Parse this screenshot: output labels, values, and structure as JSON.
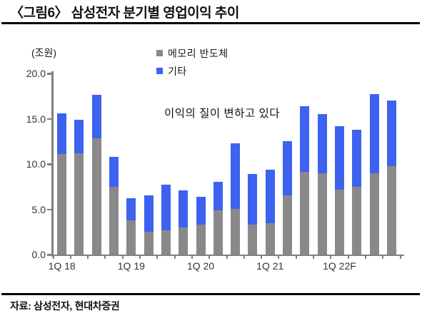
{
  "figure": {
    "title": "〈그림6〉 삼성전자 분기별 영업이익 추이",
    "source": "자료: 삼성전자, 현대차증권"
  },
  "chart_data": {
    "type": "bar",
    "stacked": true,
    "title": "삼성전자 분기별 영업이익 추이",
    "unit_label": "(조원)",
    "annotation": "이익의 질이 변하고 있다",
    "grid": false,
    "legend_position": "top-center",
    "ylim": [
      0,
      20
    ],
    "y_ticks": [
      "0.0",
      "5.0",
      "10.0",
      "15.0",
      "20.0"
    ],
    "categories": [
      "1Q18",
      "2Q18",
      "3Q18",
      "4Q18",
      "1Q19",
      "2Q19",
      "3Q19",
      "4Q19",
      "1Q20",
      "2Q20",
      "3Q20",
      "4Q20",
      "1Q21",
      "2Q21",
      "3Q21",
      "4Q21",
      "1Q22F",
      "2Q22F",
      "3Q22F",
      "4Q22F"
    ],
    "x_tick_labels": [
      {
        "label": "1Q 18",
        "index": 0
      },
      {
        "label": "1Q 19",
        "index": 4
      },
      {
        "label": "1Q 20",
        "index": 8
      },
      {
        "label": "1Q 21",
        "index": 12
      },
      {
        "label": "1Q 22F",
        "index": 16
      }
    ],
    "series": [
      {
        "name": "메모리 반도체",
        "color": "#898989",
        "values": [
          11.1,
          11.2,
          12.8,
          7.5,
          3.8,
          2.5,
          2.7,
          3.0,
          3.3,
          4.9,
          5.0,
          3.3,
          3.5,
          6.5,
          9.1,
          9.0,
          7.2,
          7.5,
          9.0,
          9.8
        ]
      },
      {
        "name": "기타",
        "color": "#3d62f0",
        "values": [
          4.5,
          3.7,
          4.8,
          3.3,
          2.4,
          4.0,
          5.0,
          4.1,
          3.1,
          3.1,
          7.3,
          5.6,
          5.9,
          6.0,
          7.3,
          6.5,
          7.0,
          6.3,
          8.7,
          7.2
        ]
      }
    ],
    "stack_totals": [
      15.6,
      14.9,
      17.6,
      10.8,
      6.2,
      6.5,
      7.7,
      7.1,
      6.4,
      8.0,
      12.3,
      8.9,
      9.4,
      12.5,
      16.4,
      15.5,
      14.2,
      13.8,
      17.7,
      17.0
    ]
  }
}
